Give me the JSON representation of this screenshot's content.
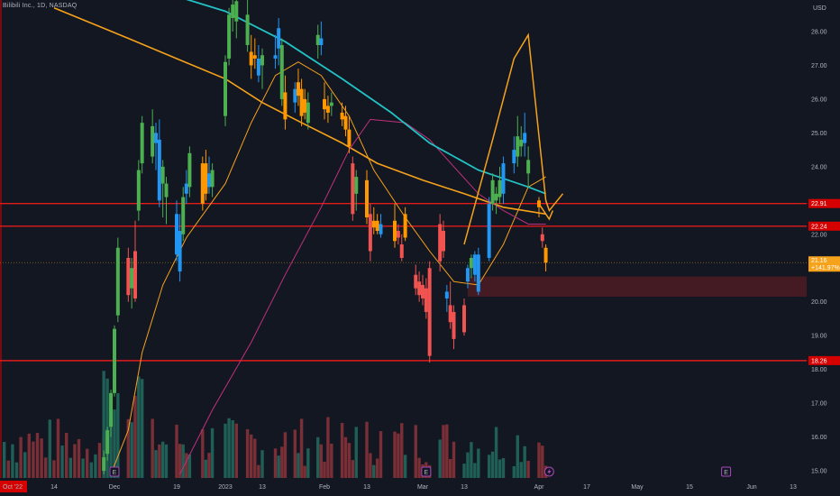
{
  "symbol": {
    "title": "Bilibili Inc., 1D, NASDAQ"
  },
  "chart_data": {
    "type": "candlestick",
    "currency": "USD",
    "y_axis": {
      "unit_label": "USD",
      "ticks": [
        "28.00",
        "27.00",
        "26.00",
        "25.00",
        "24.00",
        "22.00",
        "21.00",
        "20.00",
        "19.00",
        "18.00",
        "17.00",
        "16.00",
        "15.00"
      ],
      "ylim": [
        14.85,
        28.9
      ]
    },
    "x_axis": {
      "labels": [
        {
          "text": "Oct '22",
          "date": "2022-10-31",
          "highlight": true
        },
        {
          "text": "14",
          "date": "2022-11-14"
        },
        {
          "text": "Dec",
          "date": "2022-12-01"
        },
        {
          "text": "19",
          "date": "2022-12-19"
        },
        {
          "text": "2023",
          "date": "2023-01-03"
        },
        {
          "text": "13",
          "date": "2023-01-13"
        },
        {
          "text": "Feb",
          "date": "2023-02-01"
        },
        {
          "text": "13",
          "date": "2023-02-13"
        },
        {
          "text": "Mar",
          "date": "2023-03-01"
        },
        {
          "text": "13",
          "date": "2023-03-13"
        },
        {
          "text": "Apr",
          "date": "2023-04-03"
        },
        {
          "text": "17",
          "date": "2023-04-17"
        },
        {
          "text": "May",
          "date": "2023-05-01"
        },
        {
          "text": "15",
          "date": "2023-05-15"
        },
        {
          "text": "Jun",
          "date": "2023-06-01"
        },
        {
          "text": "13",
          "date": "2023-06-13"
        }
      ]
    },
    "price_tags": [
      {
        "text": "22.91",
        "value": 22.91,
        "color": "#d50000",
        "style": "red"
      },
      {
        "text": "22.24",
        "value": 22.24,
        "color": "#d50000",
        "style": "red"
      },
      {
        "text": "21.16",
        "sub": "+141.97%",
        "value": 21.16,
        "color": "#f7a21b",
        "style": "orange"
      },
      {
        "text": "18.26",
        "value": 18.26,
        "color": "#d50000",
        "style": "red"
      }
    ],
    "horizontal_lines": [
      {
        "value": 22.91,
        "color": "#e21b1b"
      },
      {
        "value": 22.24,
        "color": "#e21b1b"
      },
      {
        "value": 18.26,
        "color": "#e21b1b"
      }
    ],
    "zone": {
      "from_date": "2023-03-14",
      "top": 20.75,
      "bottom": 20.15,
      "color": "#4a1b24"
    },
    "series_colors": {
      "up_green": "#4caf50",
      "up_blue": "#2196f3",
      "down_orange": "#ff9800",
      "down_red": "#f05350"
    },
    "candles": [
      {
        "d": "2022-11-28",
        "o": 15.0,
        "h": 15.6,
        "l": 14.9,
        "c": 15.4,
        "col": "up_green"
      },
      {
        "d": "2022-11-29",
        "o": 15.5,
        "h": 16.3,
        "l": 15.3,
        "c": 16.2,
        "col": "up_green"
      },
      {
        "d": "2022-11-30",
        "o": 16.3,
        "h": 17.4,
        "l": 16.0,
        "c": 17.3,
        "col": "up_green"
      },
      {
        "d": "2022-12-01",
        "o": 17.3,
        "h": 19.3,
        "l": 17.2,
        "c": 19.2,
        "col": "up_green"
      },
      {
        "d": "2022-12-02",
        "o": 19.6,
        "h": 21.9,
        "l": 19.4,
        "c": 21.6,
        "col": "up_green"
      },
      {
        "d": "2022-12-05",
        "o": 21.3,
        "h": 21.6,
        "l": 20.0,
        "c": 20.2,
        "col": "down_red"
      },
      {
        "d": "2022-12-06",
        "o": 20.4,
        "h": 21.3,
        "l": 19.8,
        "c": 21.0,
        "col": "up_green"
      },
      {
        "d": "2022-12-07",
        "o": 21.5,
        "h": 22.4,
        "l": 20.0,
        "c": 20.1,
        "col": "down_red"
      },
      {
        "d": "2022-12-08",
        "o": 22.7,
        "h": 24.2,
        "l": 22.4,
        "c": 23.9,
        "col": "up_green"
      },
      {
        "d": "2022-12-09",
        "o": 24.1,
        "h": 25.5,
        "l": 23.8,
        "c": 25.3,
        "col": "up_green"
      },
      {
        "d": "2022-12-12",
        "o": 25.2,
        "h": 25.7,
        "l": 24.1,
        "c": 24.3,
        "col": "up_green"
      },
      {
        "d": "2022-12-13",
        "o": 24.7,
        "h": 25.3,
        "l": 23.9,
        "c": 25.0,
        "col": "up_blue"
      },
      {
        "d": "2022-12-14",
        "o": 24.8,
        "h": 25.4,
        "l": 22.8,
        "c": 23.0,
        "col": "up_blue"
      },
      {
        "d": "2022-12-15",
        "o": 23.5,
        "h": 24.2,
        "l": 22.5,
        "c": 24.0,
        "col": "up_green"
      },
      {
        "d": "2022-12-16",
        "o": 23.1,
        "h": 23.7,
        "l": 22.3,
        "c": 23.5,
        "col": "up_green"
      },
      {
        "d": "2022-12-19",
        "o": 22.6,
        "h": 23.0,
        "l": 21.2,
        "c": 21.4,
        "col": "up_blue"
      },
      {
        "d": "2022-12-20",
        "o": 22.1,
        "h": 22.6,
        "l": 20.6,
        "c": 20.9,
        "col": "up_blue"
      },
      {
        "d": "2022-12-21",
        "o": 22.0,
        "h": 23.4,
        "l": 21.8,
        "c": 23.1,
        "col": "up_green"
      },
      {
        "d": "2022-12-22",
        "o": 23.5,
        "h": 23.9,
        "l": 22.9,
        "c": 23.2,
        "col": "up_blue"
      },
      {
        "d": "2022-12-23",
        "o": 23.4,
        "h": 24.6,
        "l": 23.1,
        "c": 24.4,
        "col": "up_green"
      },
      {
        "d": "2022-12-27",
        "o": 24.1,
        "h": 24.3,
        "l": 22.7,
        "c": 22.9,
        "col": "down_orange"
      },
      {
        "d": "2022-12-28",
        "o": 23.2,
        "h": 24.5,
        "l": 23.0,
        "c": 24.1,
        "col": "down_orange"
      },
      {
        "d": "2022-12-29",
        "o": 23.8,
        "h": 24.3,
        "l": 23.2,
        "c": 23.4,
        "col": "up_blue"
      },
      {
        "d": "2022-12-30",
        "o": 23.4,
        "h": 24.1,
        "l": 23.1,
        "c": 23.9,
        "col": "up_green"
      },
      {
        "d": "2023-01-03",
        "o": 25.5,
        "h": 27.3,
        "l": 25.2,
        "c": 27.1,
        "col": "up_green"
      },
      {
        "d": "2023-01-04",
        "o": 27.2,
        "h": 28.7,
        "l": 27.0,
        "c": 28.5,
        "col": "up_green"
      },
      {
        "d": "2023-01-05",
        "o": 28.4,
        "h": 29.4,
        "l": 28.0,
        "c": 28.8,
        "col": "up_green"
      },
      {
        "d": "2023-01-06",
        "o": 28.9,
        "h": 29.3,
        "l": 27.8,
        "c": 28.3,
        "col": "up_green"
      },
      {
        "d": "2023-01-09",
        "o": 28.5,
        "h": 29.2,
        "l": 27.4,
        "c": 27.6,
        "col": "up_green"
      },
      {
        "d": "2023-01-10",
        "o": 27.4,
        "h": 27.9,
        "l": 26.6,
        "c": 27.0,
        "col": "down_orange"
      },
      {
        "d": "2023-01-11",
        "o": 27.3,
        "h": 27.8,
        "l": 26.9,
        "c": 27.2,
        "col": "down_orange"
      },
      {
        "d": "2023-01-12",
        "o": 27.2,
        "h": 27.6,
        "l": 26.5,
        "c": 26.7,
        "col": "up_blue"
      },
      {
        "d": "2023-01-13",
        "o": 27.0,
        "h": 27.5,
        "l": 26.3,
        "c": 27.3,
        "col": "up_green"
      },
      {
        "d": "2023-01-17",
        "o": 27.3,
        "h": 27.9,
        "l": 26.9,
        "c": 27.2,
        "col": "up_blue"
      },
      {
        "d": "2023-01-18",
        "o": 27.5,
        "h": 28.4,
        "l": 27.0,
        "c": 28.1,
        "col": "up_blue"
      },
      {
        "d": "2023-01-19",
        "o": 27.6,
        "h": 27.8,
        "l": 25.8,
        "c": 26.0,
        "col": "up_green"
      },
      {
        "d": "2023-01-20",
        "o": 26.2,
        "h": 26.7,
        "l": 25.1,
        "c": 25.4,
        "col": "down_orange"
      },
      {
        "d": "2023-01-23",
        "o": 26.3,
        "h": 26.5,
        "l": 25.6,
        "c": 25.9,
        "col": "up_blue"
      },
      {
        "d": "2023-01-24",
        "o": 26.1,
        "h": 26.9,
        "l": 25.8,
        "c": 26.5,
        "col": "down_orange"
      },
      {
        "d": "2023-01-25",
        "o": 26.3,
        "h": 26.6,
        "l": 25.2,
        "c": 25.5,
        "col": "down_orange"
      },
      {
        "d": "2023-01-26",
        "o": 26.0,
        "h": 26.3,
        "l": 25.4,
        "c": 25.6,
        "col": "down_orange"
      },
      {
        "d": "2023-01-27",
        "o": 25.3,
        "h": 26.2,
        "l": 25.1,
        "c": 25.9,
        "col": "up_green"
      },
      {
        "d": "2023-01-30",
        "o": 27.6,
        "h": 28.2,
        "l": 27.2,
        "c": 27.9,
        "col": "up_green"
      },
      {
        "d": "2023-01-31",
        "o": 27.8,
        "h": 28.3,
        "l": 27.3,
        "c": 27.6,
        "col": "up_blue"
      },
      {
        "d": "2023-02-01",
        "o": 26.0,
        "h": 26.5,
        "l": 25.4,
        "c": 25.7,
        "col": "down_orange"
      },
      {
        "d": "2023-02-02",
        "o": 25.8,
        "h": 26.1,
        "l": 25.3,
        "c": 25.6,
        "col": "down_orange"
      },
      {
        "d": "2023-02-03",
        "o": 25.9,
        "h": 26.2,
        "l": 25.5,
        "c": 25.8,
        "col": "up_green"
      },
      {
        "d": "2023-02-06",
        "o": 25.6,
        "h": 25.9,
        "l": 25.2,
        "c": 25.4,
        "col": "down_orange"
      },
      {
        "d": "2023-02-07",
        "o": 25.5,
        "h": 25.8,
        "l": 24.9,
        "c": 25.1,
        "col": "down_orange"
      },
      {
        "d": "2023-02-08",
        "o": 25.1,
        "h": 25.5,
        "l": 24.4,
        "c": 24.6,
        "col": "down_orange"
      },
      {
        "d": "2023-02-09",
        "o": 24.1,
        "h": 24.3,
        "l": 22.4,
        "c": 22.6,
        "col": "down_red"
      },
      {
        "d": "2023-02-10",
        "o": 23.2,
        "h": 23.9,
        "l": 22.7,
        "c": 23.7,
        "col": "up_green"
      },
      {
        "d": "2023-02-13",
        "o": 23.6,
        "h": 23.9,
        "l": 22.3,
        "c": 22.5,
        "col": "down_orange"
      },
      {
        "d": "2023-02-14",
        "o": 22.6,
        "h": 22.9,
        "l": 21.2,
        "c": 21.5,
        "col": "down_red"
      },
      {
        "d": "2023-02-15",
        "o": 22.2,
        "h": 22.8,
        "l": 22.0,
        "c": 22.4,
        "col": "down_orange"
      },
      {
        "d": "2023-02-16",
        "o": 22.4,
        "h": 22.6,
        "l": 22.0,
        "c": 22.1,
        "col": "down_orange"
      },
      {
        "d": "2023-02-17",
        "o": 22.3,
        "h": 22.6,
        "l": 21.9,
        "c": 22.0,
        "col": "up_blue"
      },
      {
        "d": "2023-02-21",
        "o": 22.4,
        "h": 22.9,
        "l": 21.6,
        "c": 21.8,
        "col": "down_orange"
      },
      {
        "d": "2023-02-22",
        "o": 22.1,
        "h": 22.3,
        "l": 21.7,
        "c": 21.9,
        "col": "down_red"
      },
      {
        "d": "2023-02-23",
        "o": 21.7,
        "h": 22.0,
        "l": 21.2,
        "c": 21.3,
        "col": "down_red"
      },
      {
        "d": "2023-02-24",
        "o": 21.9,
        "h": 22.8,
        "l": 21.8,
        "c": 22.6,
        "col": "down_orange"
      },
      {
        "d": "2023-02-27",
        "o": 20.8,
        "h": 21.1,
        "l": 20.2,
        "c": 20.4,
        "col": "down_red"
      },
      {
        "d": "2023-02-28",
        "o": 20.6,
        "h": 20.9,
        "l": 20.0,
        "c": 20.2,
        "col": "down_red"
      },
      {
        "d": "2023-03-01",
        "o": 20.5,
        "h": 20.8,
        "l": 19.9,
        "c": 20.1,
        "col": "down_red"
      },
      {
        "d": "2023-03-02",
        "o": 20.4,
        "h": 20.7,
        "l": 19.5,
        "c": 19.7,
        "col": "down_red"
      },
      {
        "d": "2023-03-03",
        "o": 21.0,
        "h": 21.2,
        "l": 18.2,
        "c": 18.4,
        "col": "down_red"
      },
      {
        "d": "2023-03-06",
        "o": 21.2,
        "h": 22.6,
        "l": 20.9,
        "c": 22.3,
        "col": "down_red"
      },
      {
        "d": "2023-03-07",
        "o": 22.1,
        "h": 22.4,
        "l": 21.3,
        "c": 21.5,
        "col": "down_red"
      },
      {
        "d": "2023-03-08",
        "o": 20.3,
        "h": 20.5,
        "l": 19.7,
        "c": 20.1,
        "col": "up_blue"
      },
      {
        "d": "2023-03-09",
        "o": 19.9,
        "h": 20.6,
        "l": 19.2,
        "c": 19.4,
        "col": "down_red"
      },
      {
        "d": "2023-03-10",
        "o": 19.7,
        "h": 19.9,
        "l": 18.6,
        "c": 18.9,
        "col": "down_red"
      },
      {
        "d": "2023-03-13",
        "o": 19.1,
        "h": 20.1,
        "l": 19.0,
        "c": 19.9,
        "col": "down_red"
      },
      {
        "d": "2023-03-14",
        "o": 20.6,
        "h": 21.1,
        "l": 20.4,
        "c": 21.0,
        "col": "up_blue"
      },
      {
        "d": "2023-03-15",
        "o": 21.0,
        "h": 21.4,
        "l": 20.7,
        "c": 21.3,
        "col": "up_green"
      },
      {
        "d": "2023-03-16",
        "o": 20.8,
        "h": 21.5,
        "l": 20.6,
        "c": 21.4,
        "col": "up_blue"
      },
      {
        "d": "2023-03-17",
        "o": 20.3,
        "h": 21.6,
        "l": 20.2,
        "c": 21.4,
        "col": "up_blue"
      },
      {
        "d": "2023-03-20",
        "o": 21.3,
        "h": 23.1,
        "l": 21.2,
        "c": 22.9,
        "col": "up_blue"
      },
      {
        "d": "2023-03-21",
        "o": 22.9,
        "h": 23.8,
        "l": 22.7,
        "c": 23.6,
        "col": "up_green"
      },
      {
        "d": "2023-03-22",
        "o": 23.0,
        "h": 23.4,
        "l": 22.6,
        "c": 23.2,
        "col": "up_green"
      },
      {
        "d": "2023-03-23",
        "o": 23.1,
        "h": 24.0,
        "l": 22.9,
        "c": 23.6,
        "col": "up_green"
      },
      {
        "d": "2023-03-24",
        "o": 23.2,
        "h": 24.3,
        "l": 22.9,
        "c": 24.1,
        "col": "up_blue"
      },
      {
        "d": "2023-03-27",
        "o": 24.1,
        "h": 24.9,
        "l": 23.8,
        "c": 24.5,
        "col": "up_blue"
      },
      {
        "d": "2023-03-28",
        "o": 24.3,
        "h": 25.5,
        "l": 24.0,
        "c": 24.9,
        "col": "up_green"
      },
      {
        "d": "2023-03-29",
        "o": 24.6,
        "h": 25.2,
        "l": 24.3,
        "c": 24.8,
        "col": "up_green"
      },
      {
        "d": "2023-03-30",
        "o": 24.7,
        "h": 25.6,
        "l": 24.3,
        "c": 25.0,
        "col": "up_blue"
      },
      {
        "d": "2023-03-31",
        "o": 24.2,
        "h": 24.6,
        "l": 23.4,
        "c": 23.8,
        "col": "up_green"
      },
      {
        "d": "2023-04-03",
        "o": 23.0,
        "h": 23.1,
        "l": 22.5,
        "c": 22.8,
        "col": "down_orange"
      },
      {
        "d": "2023-04-04",
        "o": 22.0,
        "h": 22.2,
        "l": 21.6,
        "c": 21.8,
        "col": "down_red"
      },
      {
        "d": "2023-04-05",
        "o": 21.6,
        "h": 21.7,
        "l": 20.9,
        "c": 21.16,
        "col": "down_orange"
      }
    ],
    "volume_events": [
      {
        "label": "E",
        "date": "2022-12-01",
        "kind": "earnings"
      },
      {
        "label": "E",
        "date": "2023-03-02",
        "kind": "earnings"
      },
      {
        "label": "E",
        "date": "2023-05-25",
        "kind": "earnings"
      }
    ],
    "bolt_event_date": "2023-04-06",
    "moving_averages": [
      {
        "name": "fast",
        "color": "#f7a21b"
      },
      {
        "name": "slow",
        "color": "#f7a21b"
      },
      {
        "name": "ma200",
        "color": "#c1307e"
      }
    ],
    "trend_curve_color": "#22c2c4",
    "sketch_color": "#f7a21b"
  }
}
